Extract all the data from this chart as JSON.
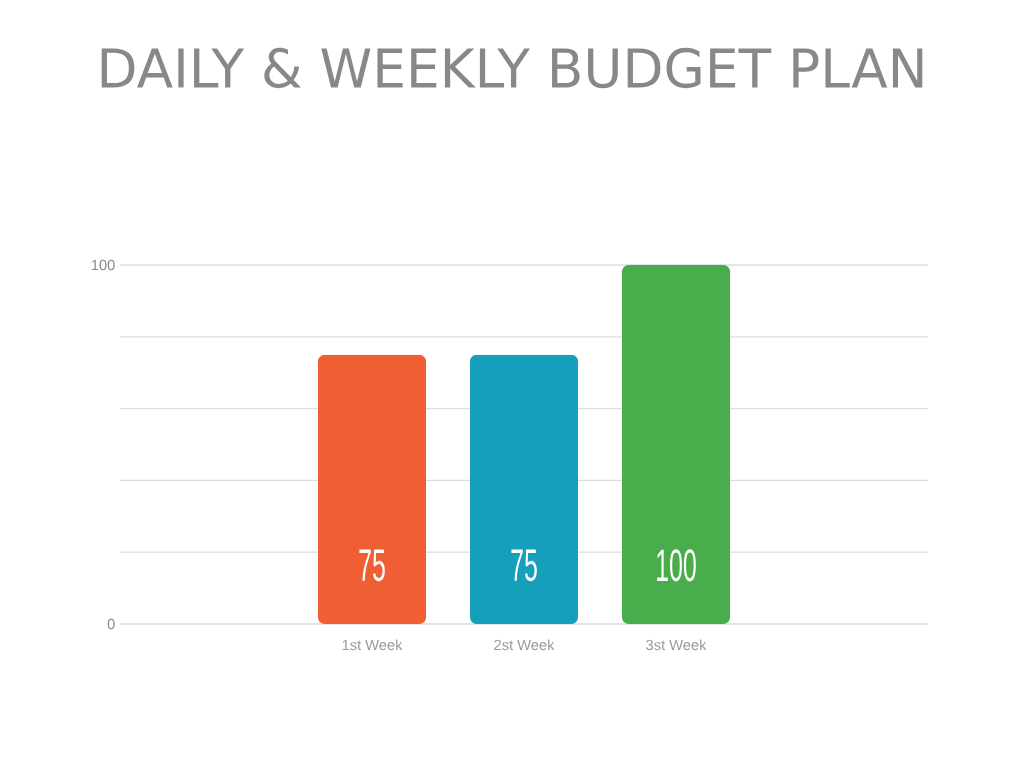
{
  "chart_data": {
    "type": "bar",
    "title": "DAILY & WEEKLY BUDGET PLAN",
    "categories": [
      "1st Week",
      "2st Week",
      "3st Week"
    ],
    "values": [
      75,
      75,
      100
    ],
    "colors": [
      "#f05f34",
      "#159fbb",
      "#4aad4c"
    ],
    "ylim": [
      0,
      100
    ],
    "yticks": [
      0,
      {
        "value": 20,
        "label": null
      },
      {
        "value": 40,
        "label": null
      },
      {
        "value": 60,
        "label": null
      },
      {
        "value": 80,
        "label": null
      },
      100
    ],
    "grid": "y",
    "data_labels": true
  }
}
